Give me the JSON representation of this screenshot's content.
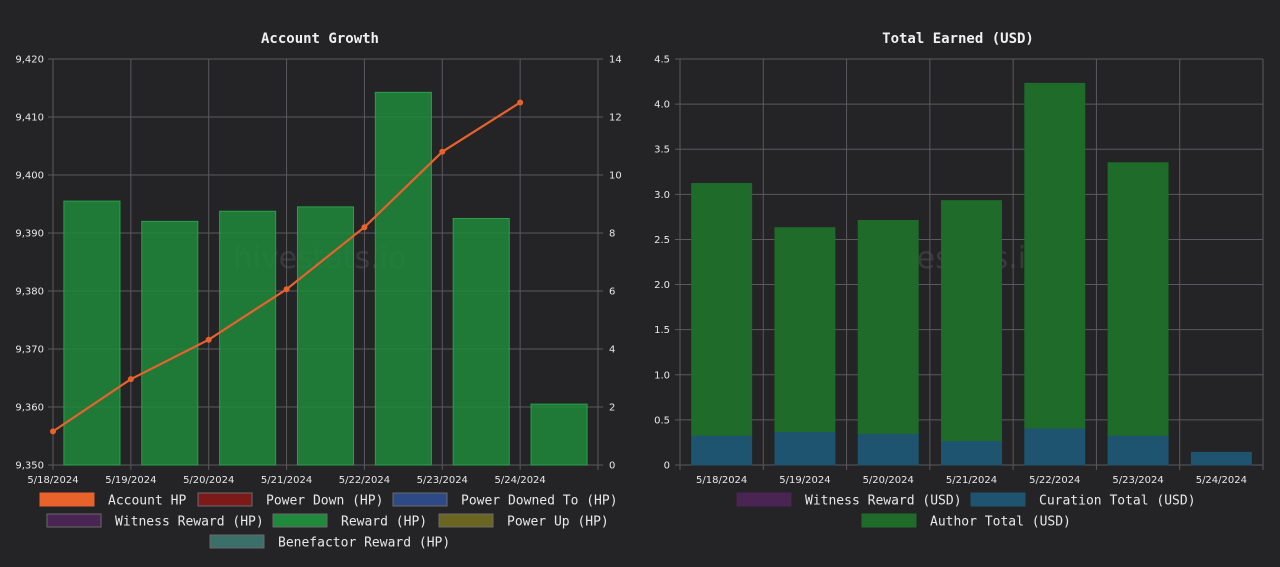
{
  "watermark": "hivestats.io",
  "chart_data": [
    {
      "type": "bar",
      "title": "Account Growth",
      "categories": [
        "5/18/2024",
        "5/19/2024",
        "5/20/2024",
        "5/21/2024",
        "5/22/2024",
        "5/23/2024",
        "5/24/2024"
      ],
      "y_left": {
        "min": 9350,
        "max": 9420,
        "ticks": [
          "9,350",
          "9,360",
          "9,370",
          "9,380",
          "9,390",
          "9,400",
          "9,410",
          "9,420"
        ]
      },
      "y_right": {
        "min": 0,
        "max": 14,
        "ticks": [
          "0",
          "2",
          "4",
          "6",
          "8",
          "10",
          "12",
          "14"
        ]
      },
      "grid": true,
      "legend_position": "bottom",
      "series": [
        {
          "name": "Account HP",
          "kind": "line",
          "axis": "left",
          "color": "#e8622c",
          "values": [
            9355.8,
            9364.8,
            9371.6,
            9380.3,
            9391.0,
            9404.0,
            9412.5
          ]
        },
        {
          "name": "Power Down (HP)",
          "kind": "bar",
          "axis": "right",
          "color": "#7c1a1a",
          "values": [
            0,
            0,
            0,
            0,
            0,
            0,
            0
          ]
        },
        {
          "name": "Power Downed To (HP)",
          "kind": "bar",
          "axis": "right",
          "color": "#2e4a86",
          "values": [
            0,
            0,
            0,
            0,
            0,
            0,
            0
          ]
        },
        {
          "name": "Witness Reward (HP)",
          "kind": "bar",
          "axis": "right",
          "color": "#4a2452",
          "values": [
            0,
            0,
            0,
            0,
            0,
            0,
            0
          ]
        },
        {
          "name": "Reward (HP)",
          "kind": "bar",
          "axis": "right",
          "color": "#1f8a3c",
          "values": [
            9.1,
            8.4,
            8.75,
            8.9,
            12.85,
            8.5,
            2.1
          ]
        },
        {
          "name": "Power Up (HP)",
          "kind": "bar",
          "axis": "right",
          "color": "#6a6520",
          "values": [
            0,
            0,
            0,
            0,
            0,
            0,
            0
          ]
        },
        {
          "name": "Benefactor Reward (HP)",
          "kind": "bar",
          "axis": "right",
          "color": "#3a6f6a",
          "values": [
            0,
            0,
            0,
            0,
            0,
            0,
            0
          ]
        }
      ]
    },
    {
      "type": "bar",
      "title": "Total Earned (USD)",
      "categories": [
        "5/18/2024",
        "5/19/2024",
        "5/20/2024",
        "5/21/2024",
        "5/22/2024",
        "5/23/2024",
        "5/24/2024"
      ],
      "stacked": true,
      "y": {
        "min": 0,
        "max": 4.5,
        "ticks": [
          "0",
          "0.5",
          "1.0",
          "1.5",
          "2.0",
          "2.5",
          "3.0",
          "3.5",
          "4.0",
          "4.5"
        ]
      },
      "grid": true,
      "legend_position": "bottom",
      "series": [
        {
          "name": "Witness Reward (USD)",
          "color": "#4a2452",
          "values": [
            0,
            0,
            0,
            0,
            0,
            0,
            0
          ]
        },
        {
          "name": "Curation Total (USD)",
          "color": "#1e5470",
          "values": [
            0.33,
            0.37,
            0.35,
            0.27,
            0.41,
            0.33,
            0.14
          ]
        },
        {
          "name": "Author Total (USD)",
          "color": "#1e6b2a",
          "values": [
            2.79,
            2.26,
            2.36,
            2.66,
            3.82,
            3.02,
            0
          ]
        }
      ]
    }
  ]
}
